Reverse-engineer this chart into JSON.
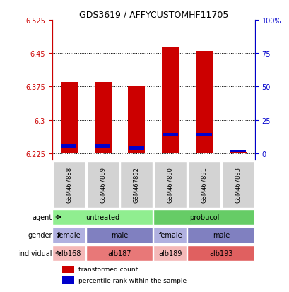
{
  "title": "GDS3619 / AFFYCUSTOMHF11705",
  "samples": [
    "GSM467888",
    "GSM467889",
    "GSM467892",
    "GSM467890",
    "GSM467891",
    "GSM467893"
  ],
  "bar_values": [
    6.385,
    6.385,
    6.375,
    6.465,
    6.455,
    6.228
  ],
  "bar_bottom": 6.225,
  "percentile_values": [
    6.238,
    6.238,
    6.232,
    6.263,
    6.263,
    6.228
  ],
  "percentile_heights": [
    0.008,
    0.008,
    0.008,
    0.008,
    0.008,
    0.005
  ],
  "ylim_min": 6.21,
  "ylim_max": 6.525,
  "yticks": [
    6.225,
    6.3,
    6.375,
    6.45,
    6.525
  ],
  "ytick_labels": [
    "6.225",
    "6.3",
    "6.375",
    "6.45",
    "6.525"
  ],
  "right_yticks": [
    0,
    25,
    50,
    75,
    100
  ],
  "right_ytick_labels": [
    "0",
    "25",
    "50",
    "75",
    "100%"
  ],
  "bar_color": "#cc0000",
  "percentile_color": "#0000cc",
  "agent_groups": [
    {
      "label": "untreated",
      "span": [
        0,
        3
      ],
      "color": "#90ee90"
    },
    {
      "label": "probucol",
      "span": [
        3,
        6
      ],
      "color": "#66cc66"
    }
  ],
  "gender_groups": [
    {
      "label": "female",
      "span": [
        0,
        1
      ],
      "color": "#b0b0e0"
    },
    {
      "label": "male",
      "span": [
        1,
        3
      ],
      "color": "#8080c0"
    },
    {
      "label": "female",
      "span": [
        3,
        4
      ],
      "color": "#b0b0e0"
    },
    {
      "label": "male",
      "span": [
        4,
        6
      ],
      "color": "#8080c0"
    }
  ],
  "individual_groups": [
    {
      "label": "alb168",
      "span": [
        0,
        1
      ],
      "color": "#f4b8b8"
    },
    {
      "label": "alb187",
      "span": [
        1,
        3
      ],
      "color": "#e87878"
    },
    {
      "label": "alb189",
      "span": [
        3,
        4
      ],
      "color": "#f4b8b8"
    },
    {
      "label": "alb193",
      "span": [
        4,
        6
      ],
      "color": "#e06060"
    }
  ],
  "row_labels": [
    "agent",
    "gender",
    "individual"
  ],
  "legend_items": [
    {
      "label": "transformed count",
      "color": "#cc0000"
    },
    {
      "label": "percentile rank within the sample",
      "color": "#0000cc"
    }
  ],
  "left_tick_color": "#cc0000",
  "right_tick_color": "#0000cc",
  "grid_color": "#000000",
  "bar_width": 0.5
}
